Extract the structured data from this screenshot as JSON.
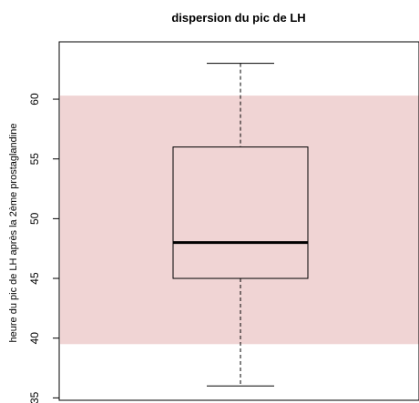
{
  "chart_data": {
    "type": "boxplot",
    "title": "dispersion du pic de LH",
    "ylabel": "heure du pic de LH après la 2ème prostaglandine",
    "xlabel": "",
    "ylim": [
      34.8,
      64.8
    ],
    "yticks": [
      35,
      40,
      45,
      50,
      55,
      60
    ],
    "ytick_labels": [
      "35",
      "40",
      "45",
      "50",
      "55",
      "60"
    ],
    "box": {
      "whisker_low": 36,
      "q1": 45,
      "median": 48,
      "q3": 56,
      "whisker_high": 63
    },
    "shaded_band": {
      "low": 39.5,
      "high": 60.3,
      "color": "#f0d4d4"
    },
    "grid": false
  }
}
